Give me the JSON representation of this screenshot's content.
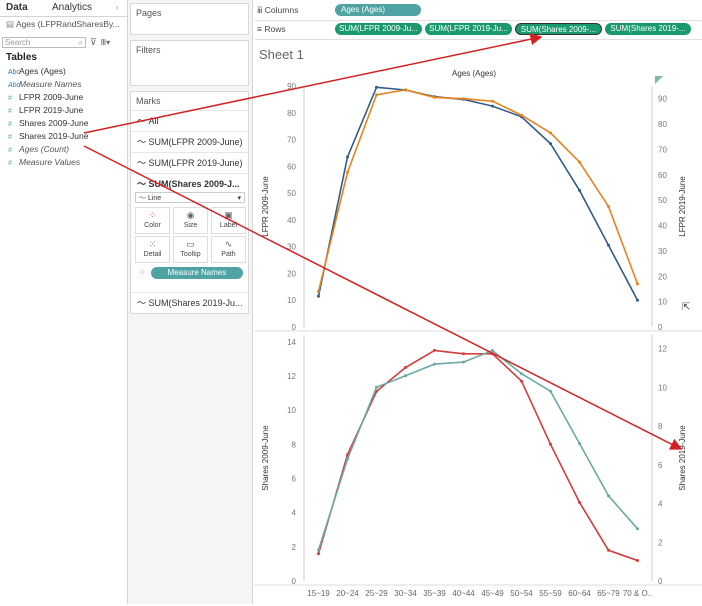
{
  "data_pane": {
    "tabs": [
      "Data",
      "Analytics"
    ],
    "datasource": "Ages (LFPRandSharesBy...",
    "search_placeholder": "Search",
    "tables_title": "Tables",
    "fields": [
      {
        "label": "Ages (Ages)",
        "kind": "Abc",
        "italic": false
      },
      {
        "label": "Measure Names",
        "kind": "Abc",
        "italic": true
      },
      {
        "label": "LFPR 2009-June",
        "kind": "#",
        "italic": false
      },
      {
        "label": "LFPR 2019-June",
        "kind": "#",
        "italic": false
      },
      {
        "label": "Shares 2009-June",
        "kind": "#",
        "italic": false
      },
      {
        "label": "Shares 2019-June",
        "kind": "#",
        "italic": false
      },
      {
        "label": "Ages (Count)",
        "kind": "#",
        "italic": true
      },
      {
        "label": "Measure Values",
        "kind": "#",
        "italic": true
      }
    ]
  },
  "cards": {
    "pages_title": "Pages",
    "filters_title": "Filters",
    "marks_title": "Marks",
    "marks_rows": [
      "All",
      "SUM(LFPR 2009-June)",
      "SUM(LFPR 2019-June)",
      "SUM(Shares 2009-J...",
      "SUM(Shares 2019-Ju..."
    ],
    "mark_type": "Line",
    "buttons": [
      "Color",
      "Size",
      "Label",
      "Detail",
      "Tooltip",
      "Path"
    ],
    "measure_names_pill": "Measure Names"
  },
  "shelves": {
    "columns_label": "Columns",
    "rows_label": "Rows",
    "columns_pills": [
      "Ages (Ages)"
    ],
    "rows_pills": [
      "SUM(LFPR 2009-Ju...",
      "SUM(LFPR 2019-Ju...",
      "SUM(Shares 2009-...",
      "SUM(Shares 2019-..."
    ]
  },
  "sheet_title": "Sheet 1",
  "colors": {
    "blue": "#2f5d8a",
    "orange": "#e8821e",
    "teal": "#6aaaa6",
    "red": "#d33c3c",
    "pill_teal": "#4fa3a3",
    "pill_green": "#1a9a6c",
    "arrow": "#d42020"
  },
  "chart_data": [
    {
      "type": "line",
      "header": "Ages (Ages)",
      "categories": [
        "15~19",
        "20~24",
        "25~29",
        "30~34",
        "35~39",
        "40~44",
        "45~49",
        "50~54",
        "55~59",
        "60~64",
        "65~79",
        "70 & O.."
      ],
      "ylabel_left": "LFPR 2009-June",
      "ylabel_right": "LFPR 2019-June",
      "ylim_left": [
        0,
        90
      ],
      "yticks_left": [
        0,
        10,
        20,
        30,
        40,
        50,
        60,
        70,
        80,
        90
      ],
      "ylim_right": [
        0,
        95
      ],
      "yticks_right": [
        0,
        10,
        20,
        30,
        40,
        50,
        60,
        70,
        80,
        90
      ],
      "series": [
        {
          "name": "LFPR 2009-June",
          "axis": "left",
          "color": "#2f5d8a",
          "values": [
            11.5,
            63.5,
            89.5,
            88.5,
            86,
            85,
            82.5,
            78.5,
            68.5,
            51,
            30.5,
            10
          ]
        },
        {
          "name": "LFPR 2019-June",
          "axis": "right",
          "color": "#e8821e",
          "values": [
            14,
            61,
            91.5,
            93.5,
            90.5,
            90,
            89,
            83.5,
            76.5,
            65,
            47.5,
            17
          ]
        }
      ]
    },
    {
      "type": "line",
      "categories": [
        "15~19",
        "20~24",
        "25~29",
        "30~34",
        "35~39",
        "40~44",
        "45~49",
        "50~54",
        "55~59",
        "60~64",
        "65~79",
        "70 & O.."
      ],
      "ylabel_left": "Shares 2009-June",
      "ylabel_right": "Shares 2019-June",
      "ylim_left": [
        0,
        14.4
      ],
      "yticks_left": [
        0,
        2,
        4,
        6,
        8,
        10,
        12,
        14
      ],
      "ylim_right": [
        0,
        12.7
      ],
      "yticks_right": [
        0,
        2,
        4,
        6,
        8,
        10,
        12
      ],
      "series": [
        {
          "name": "Shares 2009-June",
          "axis": "left",
          "color": "#d33c3c",
          "values": [
            1.6,
            7.4,
            11.1,
            12.5,
            13.5,
            13.3,
            13.3,
            11.7,
            8.0,
            4.6,
            1.8,
            1.2
          ]
        },
        {
          "name": "Shares 2019-June",
          "axis": "right",
          "color": "#6aaaa6",
          "values": [
            1.6,
            6.3,
            10.0,
            10.6,
            11.2,
            11.3,
            11.9,
            10.7,
            9.8,
            7.1,
            4.4,
            2.7
          ]
        }
      ]
    }
  ]
}
